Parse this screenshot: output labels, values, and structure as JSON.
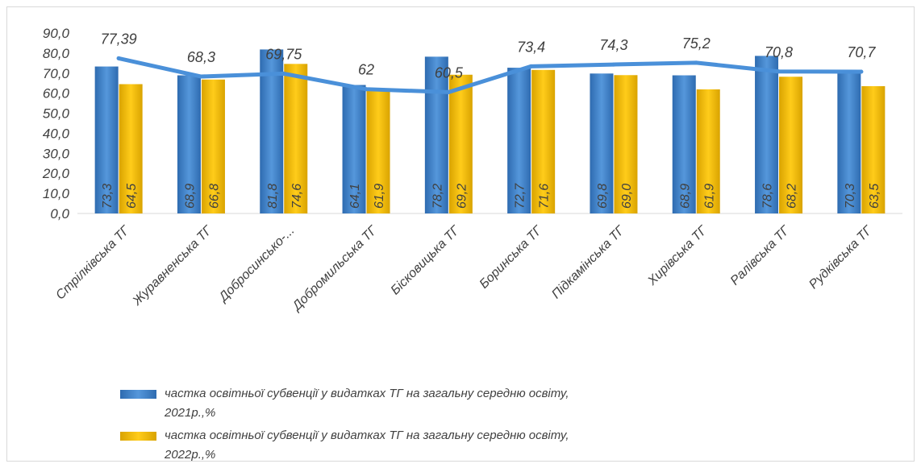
{
  "chart_data": {
    "type": "bar",
    "categories": [
      "Стрілківська ТГ",
      "Журавненська ТГ",
      "Добросинсько-...",
      "Добромильська ТГ",
      "Бісковицька ТГ",
      "Боринська ТГ",
      "Підкамінська ТГ",
      "Хирівська ТГ",
      "Ралівська ТГ",
      "Рудківська ТГ"
    ],
    "series": [
      {
        "name": "частка освітньої субвенції у видатках ТГ на загальну середню освіту, 2021р.,%",
        "type": "bar",
        "color": "#3f7fc4",
        "values": [
          73.3,
          68.9,
          81.8,
          64.1,
          78.2,
          72.7,
          69.8,
          68.9,
          78.6,
          70.3
        ],
        "labels": [
          "73,3",
          "68,9",
          "81,8",
          "64,1",
          "78,2",
          "72,7",
          "69,8",
          "68,9",
          "78,6",
          "70,3"
        ]
      },
      {
        "name": "частка освітньої субвенції у видатках ТГ на загальну середню освіту, 2022р.,%",
        "type": "bar",
        "color": "#f2b800",
        "values": [
          64.5,
          66.8,
          74.6,
          61.9,
          69.2,
          71.6,
          69.0,
          61.9,
          68.2,
          63.5
        ],
        "labels": [
          "64,5",
          "66,8",
          "74,6",
          "61,9",
          "69,2",
          "71,6",
          "69,0",
          "61,9",
          "68,2",
          "63,5"
        ]
      },
      {
        "type": "line",
        "color": "#4a90d9",
        "values": [
          77.39,
          68.3,
          69.75,
          62,
          60.5,
          73.4,
          74.3,
          75.2,
          70.8,
          70.7
        ],
        "labels": [
          "77,39",
          "68,3",
          "69,75",
          "62",
          "60,5",
          "73,4",
          "74,3",
          "75,2",
          "70,8",
          "70,7"
        ]
      }
    ],
    "ylim": [
      0,
      90
    ],
    "yticks": [
      "0,0",
      "10,0",
      "20,0",
      "30,0",
      "40,0",
      "50,0",
      "60,0",
      "70,0",
      "80,0",
      "90,0"
    ],
    "grid": false,
    "legend_position": "bottom-left",
    "legend": [
      {
        "line1": "частка освітньої субвенції у видатках ТГ на загальну середню освіту,",
        "line2": "2021р.,%",
        "color": "#3f7fc4"
      },
      {
        "line1": "частка освітньої субвенції у видатках ТГ на загальну середню освіту,",
        "line2": "2022р.,%",
        "color": "#f2b800"
      }
    ]
  }
}
